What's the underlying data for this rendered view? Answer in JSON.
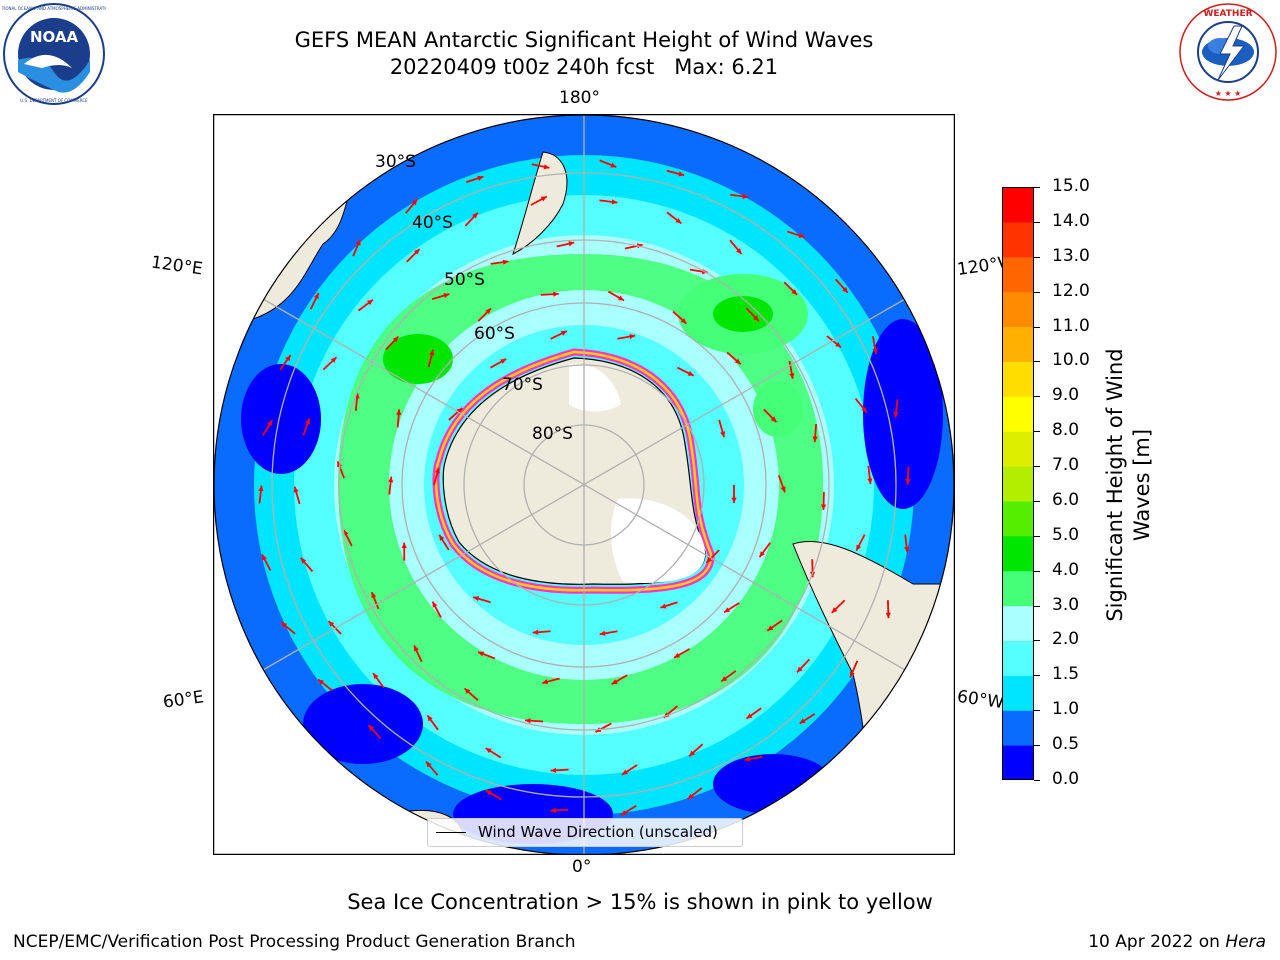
{
  "header": {
    "title_line1": "GEFS MEAN Antarctic Significant Height of Wind Waves",
    "title_line2": "20220409 t00z 240h fcst   Max: 6.21"
  },
  "logos": {
    "left": {
      "name": "NOAA",
      "ring_text": "NATIONAL OCEANIC AND ATMOSPHERIC ADMINISTRATION",
      "bottom_text": "U.S. DEPARTMENT OF COMMERCE",
      "accent": "#1a3e8c"
    },
    "right": {
      "name": "NATIONAL WEATHER SERVICE",
      "accent": "#cc1f1f"
    }
  },
  "map": {
    "projection": "south polar stereographic",
    "longitude_labels": [
      "180°",
      "120°E",
      "120°W",
      "60°E",
      "60°W",
      "0°"
    ],
    "latitude_labels": [
      "30°S",
      "40°S",
      "50°S",
      "60°S",
      "70°S",
      "80°S"
    ],
    "legend": "Wind Wave Direction (unscaled)",
    "land_color": "#efebdc",
    "ice_color": "#ffffff",
    "arrow_color": "#ff0000"
  },
  "colorbar": {
    "title": "Significant Height of Wind Waves [m]",
    "ticks": [
      "0.0",
      "0.5",
      "1.0",
      "1.5",
      "2.0",
      "3.0",
      "4.0",
      "5.0",
      "6.0",
      "7.0",
      "8.0",
      "9.0",
      "10.0",
      "11.0",
      "12.0",
      "13.0",
      "14.0",
      "15.0"
    ],
    "colors": [
      "#0000ff",
      "#0a6cff",
      "#00e5ff",
      "#55ffff",
      "#aaffff",
      "#44ff77",
      "#00e600",
      "#55ee00",
      "#b3ee00",
      "#ddee00",
      "#ffff00",
      "#ffdd00",
      "#ffb000",
      "#ff8c00",
      "#ff6600",
      "#ff3300",
      "#ff0000"
    ]
  },
  "caption": "Sea Ice Concentration > 15% is shown in pink to yellow",
  "footer": {
    "left": "NCEP/EMC/Verification Post Processing Product Generation Branch",
    "right_date": "10 Apr 2022 on ",
    "right_host": "Hera"
  }
}
